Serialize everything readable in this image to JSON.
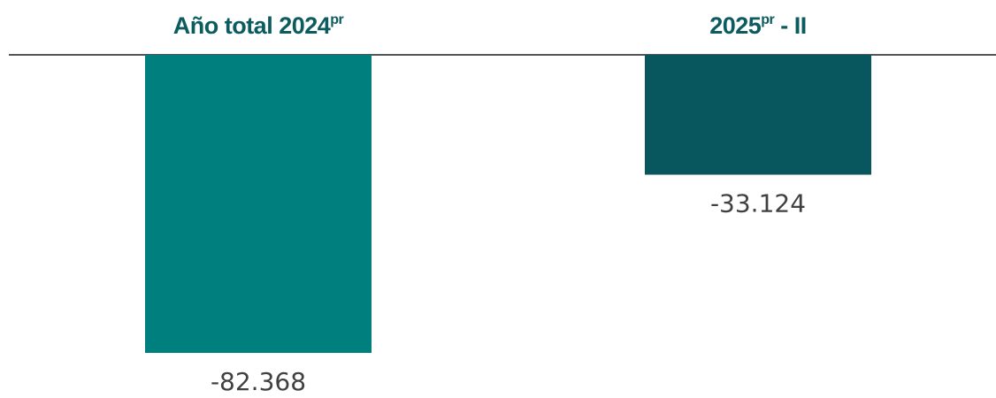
{
  "chart_data": {
    "type": "bar",
    "categories": [
      {
        "main": "Año total 2024",
        "sup": "pr",
        "suffix": ""
      },
      {
        "main": "2025",
        "sup": "pr",
        "suffix": " - II"
      }
    ],
    "values": [
      -82368,
      -33124
    ],
    "value_labels": [
      "-82.368",
      "-33.124"
    ],
    "colors": [
      "#007f7f",
      "#08565e"
    ],
    "label_color": "#0b5b5f",
    "axis_color": "#555555",
    "ylim": [
      -90000,
      0
    ],
    "grid": false,
    "legend": "none",
    "xlabel_position": "top"
  }
}
